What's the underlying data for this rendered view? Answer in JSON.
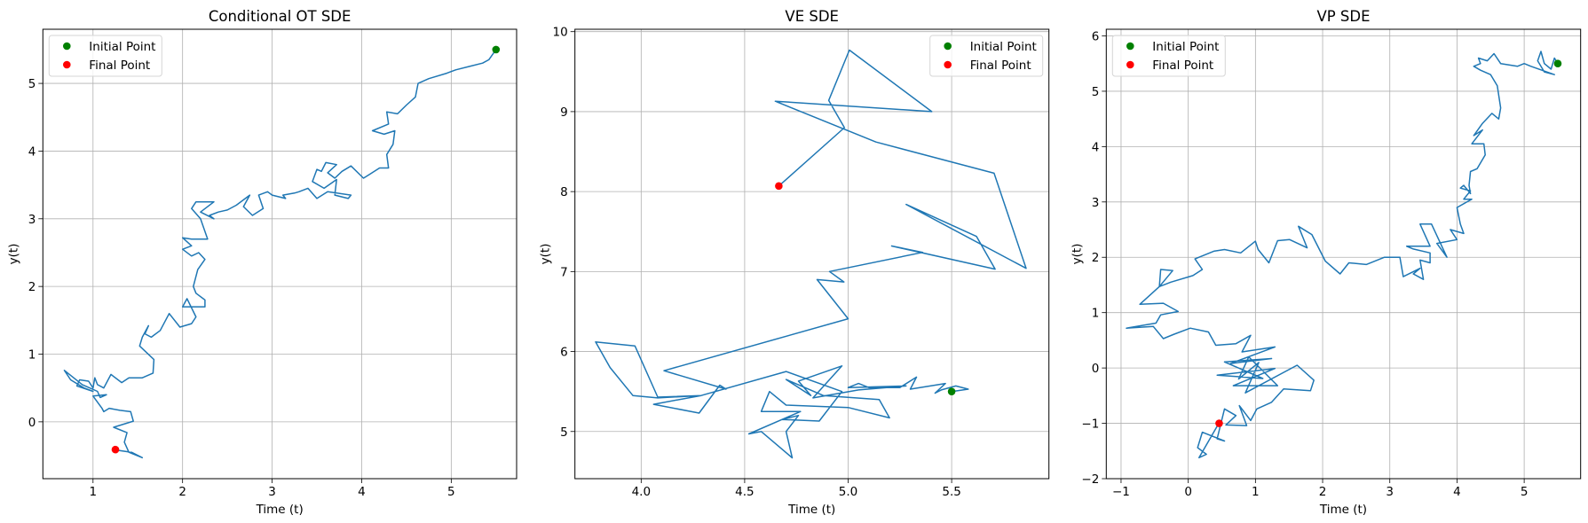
{
  "chart_data": [
    {
      "type": "line",
      "title": "Conditional OT SDE",
      "xlabel": "Time (t)",
      "ylabel": "y(t)",
      "xlim": [
        0.44,
        5.73
      ],
      "ylim": [
        -0.84,
        5.8
      ],
      "grid": true,
      "legend_placement": "upper-left",
      "xticks": [
        1,
        2,
        3,
        4,
        5
      ],
      "xtick_labels": [
        "1",
        "2",
        "3",
        "4",
        "5"
      ],
      "yticks": [
        0,
        1,
        2,
        3,
        4,
        5
      ],
      "ytick_labels": [
        "0",
        "1",
        "2",
        "3",
        "4",
        "5"
      ],
      "colors": {
        "line": "#1f77b4",
        "initial": "#008000",
        "final": "#ff0000"
      },
      "legend": [
        {
          "label": "Initial Point",
          "color": "#008000"
        },
        {
          "label": "Final Point",
          "color": "#ff0000"
        }
      ],
      "initial_point": [
        5.5,
        5.5
      ],
      "final_point": [
        1.25,
        -0.41
      ],
      "trajectory": [
        [
          5.5,
          5.5
        ],
        [
          5.42,
          5.35
        ],
        [
          5.35,
          5.3
        ],
        [
          5.2,
          5.25
        ],
        [
          5.05,
          5.2
        ],
        [
          4.95,
          5.15
        ],
        [
          4.75,
          5.07
        ],
        [
          4.63,
          5.0
        ],
        [
          4.6,
          4.8
        ],
        [
          4.5,
          4.68
        ],
        [
          4.4,
          4.55
        ],
        [
          4.28,
          4.58
        ],
        [
          4.3,
          4.4
        ],
        [
          4.12,
          4.3
        ],
        [
          4.25,
          4.25
        ],
        [
          4.37,
          4.3
        ],
        [
          4.35,
          4.1
        ],
        [
          4.28,
          3.95
        ],
        [
          4.3,
          3.75
        ],
        [
          4.2,
          3.75
        ],
        [
          4.08,
          3.65
        ],
        [
          4.02,
          3.6
        ],
        [
          3.88,
          3.78
        ],
        [
          3.78,
          3.7
        ],
        [
          3.7,
          3.6
        ],
        [
          3.62,
          3.68
        ],
        [
          3.72,
          3.8
        ],
        [
          3.6,
          3.83
        ],
        [
          3.55,
          3.7
        ],
        [
          3.5,
          3.73
        ],
        [
          3.45,
          3.55
        ],
        [
          3.58,
          3.45
        ],
        [
          3.72,
          3.58
        ],
        [
          3.7,
          3.35
        ],
        [
          3.85,
          3.3
        ],
        [
          3.88,
          3.35
        ],
        [
          3.62,
          3.4
        ],
        [
          3.5,
          3.3
        ],
        [
          3.4,
          3.45
        ],
        [
          3.3,
          3.4
        ],
        [
          3.25,
          3.38
        ],
        [
          3.12,
          3.35
        ],
        [
          3.15,
          3.3
        ],
        [
          3.0,
          3.35
        ],
        [
          2.95,
          3.4
        ],
        [
          2.85,
          3.35
        ],
        [
          2.9,
          3.15
        ],
        [
          2.78,
          3.05
        ],
        [
          2.68,
          3.18
        ],
        [
          2.75,
          3.35
        ],
        [
          2.6,
          3.2
        ],
        [
          2.5,
          3.13
        ],
        [
          2.4,
          3.1
        ],
        [
          2.3,
          3.05
        ],
        [
          2.35,
          3.0
        ],
        [
          2.2,
          3.1
        ],
        [
          2.35,
          3.25
        ],
        [
          2.15,
          3.25
        ],
        [
          2.1,
          3.15
        ],
        [
          2.2,
          3.0
        ],
        [
          2.28,
          2.7
        ],
        [
          2.1,
          2.7
        ],
        [
          2.0,
          2.72
        ],
        [
          2.1,
          2.6
        ],
        [
          2.0,
          2.55
        ],
        [
          2.1,
          2.45
        ],
        [
          2.18,
          2.5
        ],
        [
          2.25,
          2.4
        ],
        [
          2.17,
          2.25
        ],
        [
          2.12,
          2.0
        ],
        [
          2.15,
          1.9
        ],
        [
          2.25,
          1.8
        ],
        [
          2.25,
          1.7
        ],
        [
          2.0,
          1.7
        ],
        [
          2.05,
          1.82
        ],
        [
          2.15,
          1.55
        ],
        [
          2.1,
          1.45
        ],
        [
          1.97,
          1.4
        ],
        [
          1.85,
          1.6
        ],
        [
          1.75,
          1.35
        ],
        [
          1.65,
          1.25
        ],
        [
          1.58,
          1.3
        ],
        [
          1.62,
          1.42
        ],
        [
          1.55,
          1.25
        ],
        [
          1.52,
          1.12
        ],
        [
          1.68,
          0.92
        ],
        [
          1.67,
          0.72
        ],
        [
          1.55,
          0.65
        ],
        [
          1.4,
          0.65
        ],
        [
          1.32,
          0.58
        ],
        [
          1.2,
          0.7
        ],
        [
          1.12,
          0.5
        ],
        [
          1.05,
          0.55
        ],
        [
          1.02,
          0.65
        ],
        [
          1.0,
          0.5
        ],
        [
          0.95,
          0.6
        ],
        [
          0.85,
          0.62
        ],
        [
          0.82,
          0.53
        ],
        [
          1.0,
          0.45
        ],
        [
          0.9,
          0.5
        ],
        [
          0.75,
          0.62
        ],
        [
          0.68,
          0.76
        ],
        [
          0.88,
          0.55
        ],
        [
          1.05,
          0.45
        ],
        [
          1.08,
          0.36
        ],
        [
          1.15,
          0.4
        ],
        [
          1.0,
          0.38
        ],
        [
          1.1,
          0.2
        ],
        [
          1.12,
          0.15
        ],
        [
          1.18,
          0.2
        ],
        [
          1.3,
          0.17
        ],
        [
          1.42,
          0.15
        ],
        [
          1.45,
          0.01
        ],
        [
          1.23,
          -0.08
        ],
        [
          1.38,
          -0.16
        ],
        [
          1.35,
          -0.3
        ],
        [
          1.4,
          -0.45
        ],
        [
          1.55,
          -0.53
        ],
        [
          1.43,
          -0.45
        ],
        [
          1.27,
          -0.42
        ],
        [
          1.25,
          -0.41
        ]
      ]
    },
    {
      "type": "line",
      "title": "VE SDE",
      "xlabel": "Time (t)",
      "ylabel": "y(t)",
      "xlim": [
        3.68,
        5.97
      ],
      "ylim": [
        4.41,
        10.03
      ],
      "grid": true,
      "legend_placement": "upper-right",
      "xticks": [
        4.0,
        4.5,
        5.0,
        5.5
      ],
      "xtick_labels": [
        "4.0",
        "4.5",
        "5.0",
        "5.5"
      ],
      "yticks": [
        5,
        6,
        7,
        8,
        9,
        10
      ],
      "ytick_labels": [
        "5",
        "6",
        "7",
        "8",
        "9",
        "10"
      ],
      "colors": {
        "line": "#1f77b4",
        "initial": "#008000",
        "final": "#ff0000"
      },
      "legend": [
        {
          "label": "Initial Point",
          "color": "#008000"
        },
        {
          "label": "Final Point",
          "color": "#ff0000"
        }
      ],
      "initial_point": [
        5.5,
        5.5
      ],
      "final_point": [
        4.665,
        8.07
      ],
      "trajectory": [
        [
          5.5,
          5.5
        ],
        [
          5.58,
          5.53
        ],
        [
          5.52,
          5.57
        ],
        [
          5.45,
          5.52
        ],
        [
          5.42,
          5.48
        ],
        [
          5.47,
          5.6
        ],
        [
          5.3,
          5.53
        ],
        [
          5.33,
          5.68
        ],
        [
          5.25,
          5.55
        ],
        [
          5.1,
          5.55
        ],
        [
          5.05,
          5.6
        ],
        [
          5.0,
          5.55
        ],
        [
          5.28,
          5.57
        ],
        [
          5.05,
          5.52
        ],
        [
          4.83,
          5.42
        ],
        [
          4.97,
          5.82
        ],
        [
          4.76,
          5.63
        ],
        [
          4.82,
          5.45
        ],
        [
          4.7,
          5.65
        ],
        [
          4.88,
          5.45
        ],
        [
          5.15,
          5.4
        ],
        [
          5.2,
          5.17
        ],
        [
          5.0,
          5.3
        ],
        [
          4.7,
          5.33
        ],
        [
          4.62,
          5.5
        ],
        [
          4.58,
          5.25
        ],
        [
          4.77,
          5.25
        ],
        [
          4.52,
          4.97
        ],
        [
          4.58,
          5.0
        ],
        [
          4.73,
          4.67
        ],
        [
          4.7,
          5.0
        ],
        [
          4.76,
          5.2
        ],
        [
          4.68,
          5.15
        ],
        [
          4.86,
          5.13
        ],
        [
          4.97,
          5.5
        ],
        [
          4.7,
          5.75
        ],
        [
          4.29,
          5.45
        ],
        [
          4.08,
          5.42
        ],
        [
          3.96,
          5.45
        ],
        [
          3.85,
          5.8
        ],
        [
          3.78,
          6.12
        ],
        [
          3.97,
          6.07
        ],
        [
          4.08,
          5.43
        ],
        [
          4.29,
          5.45
        ],
        [
          4.06,
          5.34
        ],
        [
          4.28,
          5.23
        ],
        [
          4.38,
          5.58
        ],
        [
          4.41,
          5.53
        ],
        [
          4.11,
          5.76
        ],
        [
          5.0,
          6.41
        ],
        [
          4.85,
          6.9
        ],
        [
          4.98,
          6.87
        ],
        [
          4.91,
          7.0
        ],
        [
          5.36,
          7.24
        ],
        [
          5.21,
          7.32
        ],
        [
          5.71,
          7.03
        ],
        [
          5.62,
          7.44
        ],
        [
          5.28,
          7.84
        ],
        [
          5.86,
          7.04
        ],
        [
          5.705,
          8.23
        ],
        [
          5.134,
          8.62
        ],
        [
          4.648,
          9.13
        ],
        [
          5.404,
          9.0
        ],
        [
          5.006,
          9.77
        ],
        [
          4.906,
          9.14
        ],
        [
          4.982,
          8.8
        ],
        [
          4.665,
          8.07
        ]
      ]
    },
    {
      "type": "line",
      "title": "VP SDE",
      "xlabel": "Time (t)",
      "ylabel": "y(t)",
      "xlim": [
        -1.22,
        5.84
      ],
      "ylim": [
        -2,
        6.12
      ],
      "grid": true,
      "legend_placement": "upper-left",
      "xticks": [
        -1,
        0,
        1,
        2,
        3,
        4,
        5
      ],
      "xtick_labels": [
        "−1",
        "0",
        "1",
        "2",
        "3",
        "4",
        "5"
      ],
      "yticks": [
        -2,
        -1,
        0,
        1,
        2,
        3,
        4,
        5,
        6
      ],
      "ytick_labels": [
        "−2",
        "−1",
        "0",
        "1",
        "2",
        "3",
        "4",
        "5",
        "6"
      ],
      "colors": {
        "line": "#1f77b4",
        "initial": "#008000",
        "final": "#ff0000"
      },
      "legend": [
        {
          "label": "Initial Point",
          "color": "#008000"
        },
        {
          "label": "Final Point",
          "color": "#ff0000"
        }
      ],
      "initial_point": [
        5.5,
        5.5
      ],
      "final_point": [
        0.46,
        -1.0
      ],
      "trajectory": [
        [
          5.5,
          5.5
        ],
        [
          5.45,
          5.6
        ],
        [
          5.4,
          5.4
        ],
        [
          5.3,
          5.5
        ],
        [
          5.25,
          5.72
        ],
        [
          5.2,
          5.55
        ],
        [
          5.3,
          5.35
        ],
        [
          5.45,
          5.3
        ],
        [
          5.1,
          5.45
        ],
        [
          5.0,
          5.5
        ],
        [
          4.9,
          5.45
        ],
        [
          4.65,
          5.5
        ],
        [
          4.55,
          5.68
        ],
        [
          4.45,
          5.55
        ],
        [
          4.32,
          5.6
        ],
        [
          4.35,
          5.5
        ],
        [
          4.25,
          5.45
        ],
        [
          4.35,
          5.38
        ],
        [
          4.5,
          5.3
        ],
        [
          4.6,
          5.1
        ],
        [
          4.65,
          4.7
        ],
        [
          4.62,
          4.5
        ],
        [
          4.52,
          4.6
        ],
        [
          4.38,
          4.42
        ],
        [
          4.25,
          4.2
        ],
        [
          4.38,
          4.3
        ],
        [
          4.22,
          4.05
        ],
        [
          4.4,
          4.05
        ],
        [
          4.42,
          3.85
        ],
        [
          4.3,
          3.6
        ],
        [
          4.2,
          3.55
        ],
        [
          4.18,
          3.3
        ],
        [
          4.2,
          3.15
        ],
        [
          4.1,
          3.3
        ],
        [
          4.05,
          3.25
        ],
        [
          4.2,
          3.2
        ],
        [
          4.1,
          3.05
        ],
        [
          4.22,
          3.05
        ],
        [
          4.0,
          2.9
        ],
        [
          4.05,
          2.6
        ],
        [
          4.1,
          2.43
        ],
        [
          3.9,
          2.5
        ],
        [
          4.0,
          2.32
        ],
        [
          3.7,
          2.25
        ],
        [
          3.85,
          2.0
        ],
        [
          3.62,
          2.6
        ],
        [
          3.45,
          2.6
        ],
        [
          3.6,
          2.2
        ],
        [
          3.25,
          2.2
        ],
        [
          3.35,
          2.15
        ],
        [
          3.6,
          2.08
        ],
        [
          3.6,
          1.9
        ],
        [
          3.45,
          1.95
        ],
        [
          3.5,
          1.6
        ],
        [
          3.35,
          1.7
        ],
        [
          3.45,
          1.8
        ],
        [
          3.2,
          1.65
        ],
        [
          3.15,
          2.0
        ],
        [
          2.92,
          2.0
        ],
        [
          2.65,
          1.87
        ],
        [
          2.39,
          1.9
        ],
        [
          2.26,
          1.7
        ],
        [
          2.04,
          1.93
        ],
        [
          1.84,
          2.41
        ],
        [
          1.64,
          2.56
        ],
        [
          1.77,
          2.17
        ],
        [
          1.51,
          2.32
        ],
        [
          1.33,
          2.3
        ],
        [
          1.2,
          1.9
        ],
        [
          1.04,
          2.14
        ],
        [
          1.0,
          2.29
        ],
        [
          0.78,
          2.08
        ],
        [
          0.54,
          2.14
        ],
        [
          0.38,
          2.11
        ],
        [
          0.1,
          1.97
        ],
        [
          0.21,
          1.78
        ],
        [
          0.07,
          1.67
        ],
        [
          -0.26,
          1.55
        ],
        [
          -0.43,
          1.47
        ],
        [
          -0.41,
          1.78
        ],
        [
          -0.23,
          1.76
        ],
        [
          -0.43,
          1.47
        ],
        [
          -0.72,
          1.15
        ],
        [
          -0.37,
          1.17
        ],
        [
          -0.15,
          1.02
        ],
        [
          -0.41,
          0.96
        ],
        [
          -0.48,
          0.81
        ],
        [
          -0.92,
          0.72
        ],
        [
          -0.52,
          0.75
        ],
        [
          -0.37,
          0.53
        ],
        [
          -0.21,
          0.61
        ],
        [
          0.03,
          0.72
        ],
        [
          0.3,
          0.65
        ],
        [
          0.41,
          0.41
        ],
        [
          0.71,
          0.44
        ],
        [
          0.93,
          0.59
        ],
        [
          0.8,
          0.29
        ],
        [
          1.29,
          0.38
        ],
        [
          0.63,
          0.08
        ],
        [
          1.24,
          0.17
        ],
        [
          0.54,
          0.11
        ],
        [
          1.11,
          -0.19
        ],
        [
          0.43,
          -0.13
        ],
        [
          1.29,
          -0.01
        ],
        [
          0.67,
          -0.32
        ],
        [
          1.33,
          -0.32
        ],
        [
          0.9,
          0.2
        ],
        [
          0.75,
          -0.2
        ],
        [
          1.05,
          0.1
        ],
        [
          0.85,
          -0.45
        ],
        [
          1.62,
          0.05
        ],
        [
          1.87,
          -0.22
        ],
        [
          1.82,
          -0.41
        ],
        [
          1.42,
          -0.38
        ],
        [
          1.24,
          -0.62
        ],
        [
          1.02,
          -0.74
        ],
        [
          0.93,
          -0.95
        ],
        [
          0.76,
          -0.68
        ],
        [
          0.87,
          -1.04
        ],
        [
          0.56,
          -1.03
        ],
        [
          0.71,
          -0.86
        ],
        [
          0.54,
          -0.74
        ],
        [
          0.43,
          -1.28
        ],
        [
          0.54,
          -1.32
        ],
        [
          0.21,
          -1.16
        ],
        [
          0.14,
          -1.44
        ],
        [
          0.27,
          -1.56
        ],
        [
          0.16,
          -1.62
        ],
        [
          0.45,
          -1.01
        ],
        [
          0.46,
          -1.0
        ]
      ]
    }
  ]
}
